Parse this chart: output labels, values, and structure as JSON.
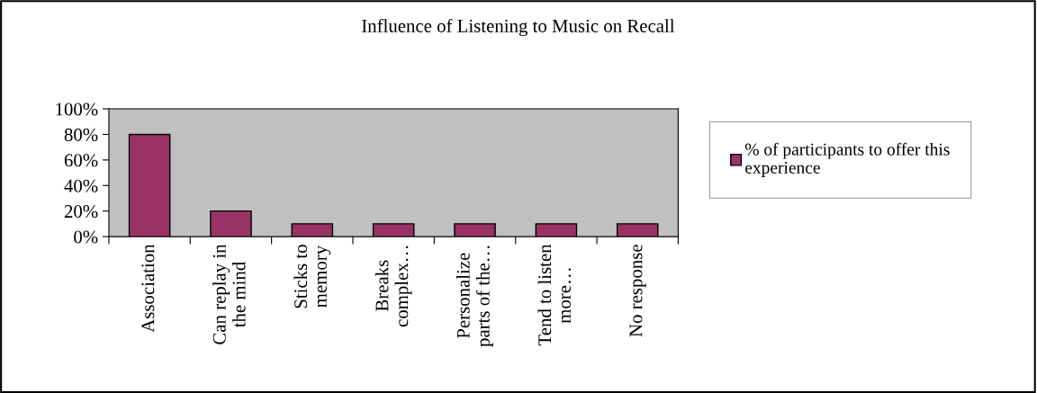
{
  "chart_data": {
    "type": "bar",
    "title": "Influence of Listening to Music on Recall",
    "categories": [
      "Association",
      "Can replay in\nthe mind",
      "Sticks to\nmemory",
      "Breaks\ncomplex…",
      "Personalize\nparts of the…",
      "Tend to listen\nmore…",
      "No response"
    ],
    "series": [
      {
        "name": "% of participants to offer this\nexperience",
        "color": "#993366",
        "values": [
          80,
          20,
          10,
          10,
          10,
          10,
          10
        ]
      }
    ],
    "ylim": [
      0,
      100
    ],
    "yticks": [
      {
        "value": 0,
        "label": "0%"
      },
      {
        "value": 20,
        "label": "20%"
      },
      {
        "value": 40,
        "label": "40%"
      },
      {
        "value": 60,
        "label": "60%"
      },
      {
        "value": 80,
        "label": "80%"
      },
      {
        "value": 100,
        "label": "100%"
      }
    ],
    "grid": false,
    "legend": "right"
  }
}
